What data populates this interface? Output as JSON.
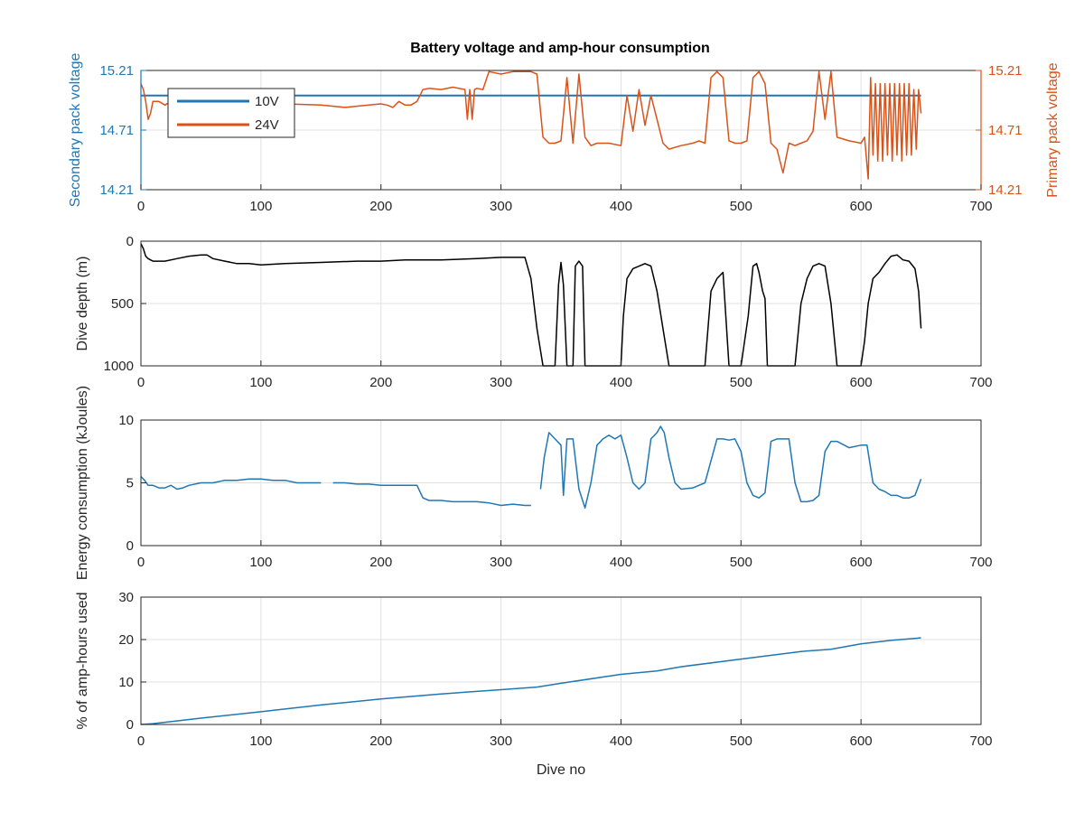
{
  "figure": {
    "title": "Battery voltage and amp-hour consumption"
  },
  "colors": {
    "blue": "#1f77b4",
    "orange": "#d95319",
    "black": "#000000",
    "grid": "#e0e0e0",
    "axis": "#262626"
  },
  "chart_data": [
    {
      "type": "line",
      "title": "Battery voltage and amp-hour consumption",
      "xlabel": "",
      "ylabel": "Secondary pack voltage",
      "ylabel_right": "Primary pack voltage",
      "xlim": [
        0,
        700
      ],
      "ylim": [
        14.21,
        15.21
      ],
      "ylim_right": [
        14.21,
        15.21
      ],
      "xticks": [
        0,
        100,
        200,
        300,
        400,
        500,
        600,
        700
      ],
      "yticks": [
        14.21,
        14.71,
        15.21
      ],
      "yticks_right": [
        14.21,
        14.71,
        15.21
      ],
      "grid": true,
      "legend_position": "top-left",
      "series": [
        {
          "name": "10V",
          "axis": "left",
          "color": "#1f77b4",
          "x": [
            0,
            650
          ],
          "y": [
            15.0,
            15.0
          ]
        },
        {
          "name": "24V",
          "axis": "right",
          "color": "#d95319",
          "x": [
            0,
            2,
            4,
            6,
            8,
            10,
            15,
            20,
            25,
            30,
            40,
            50,
            60,
            80,
            100,
            120,
            150,
            170,
            190,
            200,
            205,
            210,
            215,
            220,
            225,
            230,
            235,
            240,
            250,
            260,
            270,
            272,
            274,
            276,
            278,
            280,
            285,
            290,
            300,
            310,
            320,
            325,
            330,
            335,
            340,
            345,
            350,
            355,
            360,
            365,
            370,
            375,
            380,
            390,
            400,
            405,
            410,
            415,
            420,
            425,
            430,
            435,
            440,
            450,
            460,
            465,
            470,
            475,
            480,
            485,
            490,
            495,
            500,
            505,
            510,
            515,
            520,
            525,
            530,
            535,
            540,
            545,
            550,
            555,
            560,
            565,
            570,
            575,
            580,
            590,
            600,
            603,
            606,
            608,
            610,
            612,
            614,
            616,
            618,
            620,
            622,
            624,
            626,
            628,
            630,
            632,
            634,
            636,
            638,
            640,
            642,
            644,
            646,
            648,
            650
          ],
          "y": [
            15.1,
            15.05,
            14.95,
            14.8,
            14.85,
            14.95,
            14.95,
            14.92,
            14.95,
            14.9,
            14.95,
            14.93,
            14.95,
            14.92,
            14.95,
            14.93,
            14.92,
            14.9,
            14.92,
            14.93,
            14.92,
            14.9,
            14.95,
            14.92,
            14.92,
            14.95,
            15.05,
            15.06,
            15.05,
            15.07,
            15.05,
            14.8,
            15.05,
            14.8,
            15.05,
            15.06,
            15.05,
            15.2,
            15.18,
            15.2,
            15.2,
            15.2,
            15.18,
            14.65,
            14.6,
            14.6,
            14.62,
            15.15,
            14.6,
            15.18,
            14.65,
            14.58,
            14.6,
            14.6,
            14.58,
            15.0,
            14.7,
            15.05,
            14.75,
            15.0,
            14.8,
            14.6,
            14.55,
            14.58,
            14.6,
            14.62,
            14.6,
            15.15,
            15.2,
            15.15,
            14.62,
            14.6,
            14.6,
            14.62,
            15.15,
            15.2,
            15.1,
            14.6,
            14.55,
            14.35,
            14.6,
            14.58,
            14.6,
            14.62,
            14.7,
            15.2,
            14.8,
            15.2,
            14.65,
            14.62,
            14.6,
            14.65,
            14.3,
            15.15,
            14.5,
            15.1,
            14.45,
            15.1,
            14.45,
            15.1,
            14.5,
            15.1,
            14.45,
            15.1,
            14.5,
            15.1,
            14.45,
            15.1,
            14.5,
            15.1,
            14.5,
            15.05,
            14.55,
            15.05,
            14.85
          ]
        }
      ]
    },
    {
      "type": "line",
      "xlabel": "",
      "ylabel": "Dive depth (m)",
      "xlim": [
        0,
        700
      ],
      "ylim": [
        0,
        1000
      ],
      "y_reversed": true,
      "xticks": [
        0,
        100,
        200,
        300,
        400,
        500,
        600,
        700
      ],
      "yticks": [
        0,
        500,
        1000
      ],
      "grid": true,
      "series": [
        {
          "color": "#000000",
          "x": [
            0,
            2,
            4,
            6,
            8,
            10,
            20,
            30,
            40,
            50,
            55,
            60,
            70,
            80,
            90,
            100,
            120,
            150,
            180,
            200,
            220,
            250,
            280,
            300,
            320,
            325,
            330,
            335,
            340,
            345,
            348,
            350,
            352,
            355,
            358,
            360,
            362,
            365,
            368,
            370,
            372,
            375,
            380,
            390,
            400,
            402,
            405,
            410,
            420,
            425,
            430,
            435,
            440,
            450,
            460,
            465,
            470,
            475,
            480,
            485,
            490,
            500,
            503,
            506,
            508,
            510,
            513,
            515,
            518,
            520,
            522,
            540,
            545,
            550,
            555,
            560,
            565,
            570,
            575,
            580,
            590,
            600,
            603,
            606,
            610,
            615,
            620,
            625,
            630,
            635,
            640,
            645,
            648,
            650
          ],
          "y": [
            20,
            60,
            120,
            140,
            150,
            160,
            160,
            140,
            120,
            110,
            110,
            140,
            160,
            180,
            180,
            190,
            180,
            170,
            160,
            160,
            150,
            150,
            140,
            130,
            130,
            300,
            700,
            1000,
            1000,
            1000,
            350,
            170,
            350,
            1000,
            1000,
            1000,
            200,
            160,
            200,
            1000,
            1000,
            1000,
            1000,
            1000,
            1000,
            600,
            300,
            220,
            180,
            200,
            400,
            700,
            1000,
            1000,
            1000,
            1000,
            1000,
            400,
            300,
            250,
            1000,
            1000,
            800,
            600,
            400,
            200,
            180,
            250,
            400,
            460,
            1000,
            1000,
            1000,
            500,
            300,
            200,
            180,
            200,
            500,
            1000,
            1000,
            1000,
            800,
            500,
            300,
            250,
            180,
            120,
            110,
            150,
            160,
            220,
            400,
            700
          ]
        }
      ]
    },
    {
      "type": "line",
      "xlabel": "",
      "ylabel": "Energy consumption (kJoules)",
      "xlim": [
        0,
        700
      ],
      "ylim": [
        0,
        10
      ],
      "xticks": [
        0,
        100,
        200,
        300,
        400,
        500,
        600,
        700
      ],
      "yticks": [
        0,
        5,
        10
      ],
      "grid": true,
      "series": [
        {
          "color": "#1f77b4",
          "x": [
            0,
            3,
            6,
            10,
            15,
            20,
            25,
            30,
            35,
            40,
            50,
            60,
            70,
            80,
            90,
            100,
            110,
            120,
            130,
            140,
            150,
            155,
            160,
            170,
            180,
            190,
            200,
            210,
            220,
            230,
            235,
            240,
            250,
            260,
            270,
            280,
            290,
            300,
            310,
            320,
            325,
            330,
            333,
            336,
            340,
            345,
            350,
            352,
            355,
            360,
            365,
            370,
            375,
            380,
            385,
            390,
            395,
            400,
            405,
            410,
            415,
            420,
            425,
            430,
            433,
            436,
            440,
            445,
            450,
            460,
            470,
            480,
            485,
            490,
            495,
            500,
            505,
            510,
            515,
            520,
            525,
            530,
            540,
            545,
            550,
            555,
            560,
            565,
            570,
            575,
            580,
            590,
            600,
            605,
            610,
            615,
            620,
            625,
            630,
            635,
            640,
            645,
            650
          ],
          "y": [
            5.5,
            5.2,
            4.8,
            4.8,
            4.6,
            4.6,
            4.8,
            4.5,
            4.6,
            4.8,
            5.0,
            5.0,
            5.2,
            5.2,
            5.3,
            5.3,
            5.2,
            5.2,
            5.0,
            5.0,
            5.0,
            null,
            5.0,
            5.0,
            4.9,
            4.9,
            4.8,
            4.8,
            4.8,
            4.8,
            3.8,
            3.6,
            3.6,
            3.5,
            3.5,
            3.5,
            3.4,
            3.2,
            3.3,
            3.2,
            3.2,
            null,
            4.5,
            7.0,
            9.0,
            8.5,
            8.0,
            4.0,
            8.5,
            8.5,
            4.5,
            3.0,
            5.0,
            8.0,
            8.5,
            8.8,
            8.5,
            8.8,
            7.0,
            5.0,
            4.5,
            5.0,
            8.5,
            9.0,
            9.5,
            9.0,
            7.0,
            5.0,
            4.5,
            4.6,
            5.0,
            8.5,
            8.5,
            8.4,
            8.5,
            7.5,
            5.0,
            4.0,
            3.8,
            4.2,
            8.3,
            8.5,
            8.5,
            5.0,
            3.5,
            3.5,
            3.6,
            4.0,
            7.5,
            8.3,
            8.3,
            7.8,
            8.0,
            8.0,
            5.0,
            4.5,
            4.3,
            4.0,
            4.0,
            3.8,
            3.8,
            4.0,
            5.3
          ]
        }
      ]
    },
    {
      "type": "line",
      "xlabel": "Dive no",
      "ylabel": "% of amp-hours used",
      "xlim": [
        0,
        700
      ],
      "ylim": [
        0,
        30
      ],
      "xticks": [
        0,
        100,
        200,
        300,
        400,
        500,
        600,
        700
      ],
      "yticks": [
        0,
        10,
        20,
        30
      ],
      "grid": true,
      "series": [
        {
          "color": "#1f77b4",
          "x": [
            0,
            10,
            50,
            100,
            150,
            200,
            250,
            300,
            330,
            350,
            400,
            430,
            450,
            500,
            550,
            575,
            600,
            625,
            650
          ],
          "y": [
            0,
            0.2,
            1.5,
            3.0,
            4.6,
            6.0,
            7.2,
            8.2,
            8.8,
            9.7,
            11.8,
            12.6,
            13.6,
            15.4,
            17.2,
            17.7,
            19.0,
            19.8,
            20.4
          ]
        }
      ]
    }
  ]
}
